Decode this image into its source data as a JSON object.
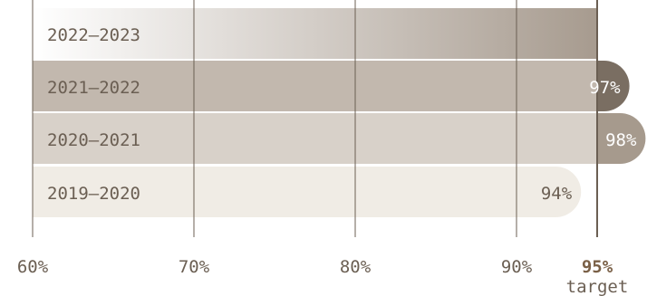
{
  "chart_data": {
    "type": "bar",
    "orientation": "horizontal",
    "title": "",
    "xlabel": "",
    "ylabel": "",
    "xlim": [
      60,
      95
    ],
    "grid": true,
    "target": {
      "value": 95,
      "label": "95%",
      "sublabel": "target"
    },
    "x_ticks": [
      {
        "value": 60,
        "label": "60%"
      },
      {
        "value": 70,
        "label": "70%"
      },
      {
        "value": 80,
        "label": "80%"
      },
      {
        "value": 90,
        "label": "90%"
      }
    ],
    "categories": [
      "2022–2023",
      "2021–2022",
      "2020–2021",
      "2019–2020"
    ],
    "values": [
      95,
      97,
      98,
      94
    ],
    "value_labels": [
      "",
      "97%",
      "98%",
      "94%"
    ]
  },
  "colors": {
    "bar_2022_2023_start": "#ffffff",
    "bar_2022_2023_end": "#a79b8f",
    "bar_2021_2022": "#c2b8ae",
    "bar_2020_2021": "#d8d1c9",
    "bar_2019_2020": "#f0ece5",
    "cap_2021_2022": "#7a6e62",
    "cap_2020_2021": "#a69a8d",
    "category_text": "#6b5f53",
    "value_text_light": "#ffffff",
    "value_text_dark": "#6b5f53",
    "axis_line": "#6b5f53",
    "tick_text": "#6b5f53",
    "target_text": "#7a6047"
  }
}
